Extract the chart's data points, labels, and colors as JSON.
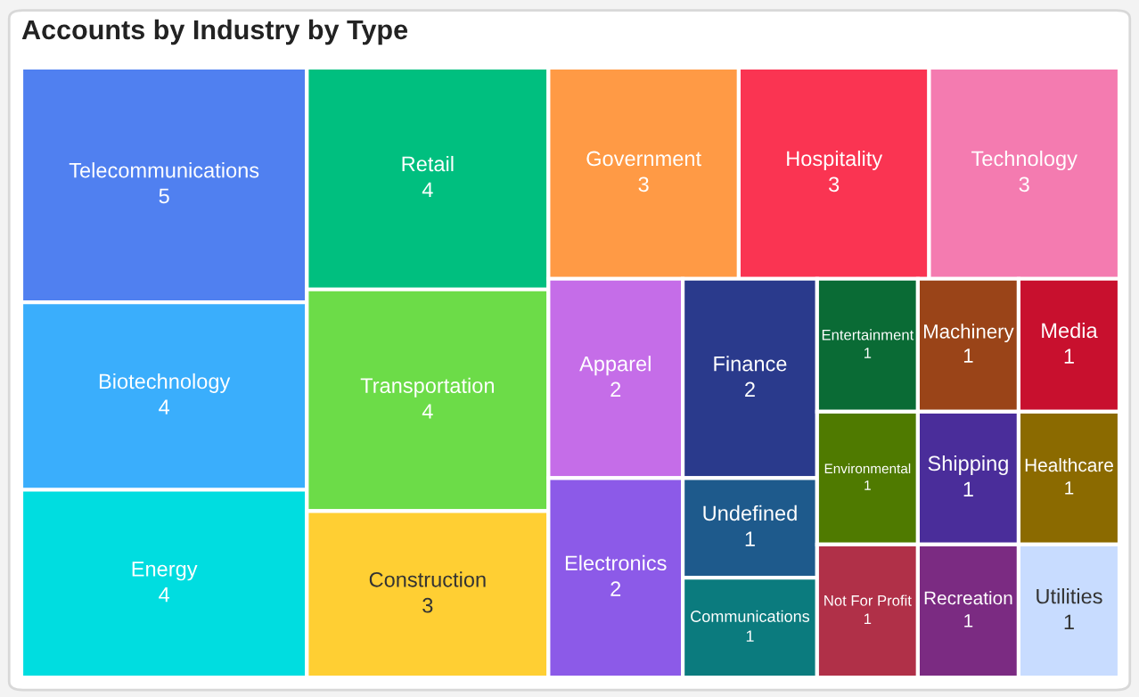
{
  "chart_data": {
    "type": "other",
    "title": "Accounts by Industry by Type",
    "categories": [
      "Telecommunications",
      "Biotechnology",
      "Energy",
      "Retail",
      "Transportation",
      "Construction",
      "Government",
      "Hospitality",
      "Technology",
      "Apparel",
      "Electronics",
      "Finance",
      "Undefined",
      "Communications",
      "Entertainment",
      "Machinery",
      "Media",
      "Environmental",
      "Not For Profit",
      "Shipping",
      "Healthcare",
      "Recreation",
      "Utilities"
    ],
    "values": [
      5,
      4,
      4,
      4,
      4,
      3,
      3,
      3,
      3,
      2,
      2,
      2,
      1,
      1,
      1,
      1,
      1,
      1,
      1,
      1,
      1,
      1,
      1
    ],
    "colors": [
      "#5080f0",
      "#3aaefc",
      "#00dde0",
      "#00bf7f",
      "#6cdc48",
      "#ffcf33",
      "#ff9a45",
      "#fa3452",
      "#f47bb0",
      "#c56de8",
      "#8c5ae8",
      "#2a3a8c",
      "#1e5a8c",
      "#0b7b7e",
      "#0a6b35",
      "#9a4418",
      "#c8102e",
      "#4f7a00",
      "#b03048",
      "#4a2d9a",
      "#8b6a00",
      "#7b2b82",
      "#c8dcff"
    ],
    "data_labels": true
  }
}
